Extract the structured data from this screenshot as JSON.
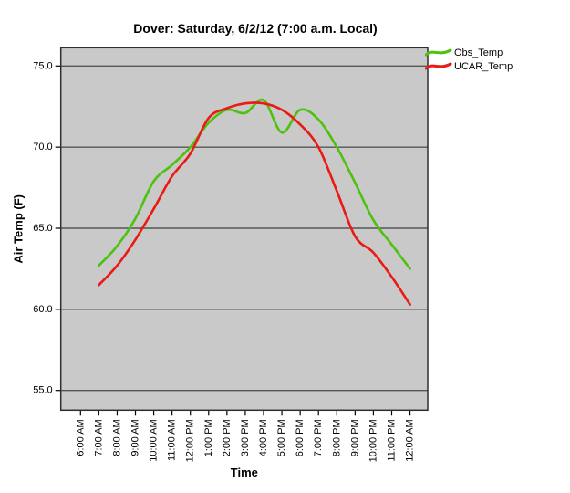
{
  "window": {
    "background": "#ffffff"
  },
  "chart_data": {
    "type": "line",
    "title": "Dover: Saturday, 6/2/12 (7:00 a.m. Local)",
    "xlabel": "Time",
    "ylabel": "Air Temp (F)",
    "ylim": [
      53.8,
      76.1
    ],
    "yticks": [
      55.0,
      60.0,
      65.0,
      70.0,
      75.0
    ],
    "ytick_labels": [
      "55.0",
      "60.0",
      "65.0",
      "70.0",
      "75.0"
    ],
    "grid": "horizontal",
    "plot_bg": "#c9c9c9",
    "gridline_color": "#565656",
    "border_color": "#2e2e2e",
    "legend_position": "top-right",
    "categories": [
      "6:00 AM",
      "7:00 AM",
      "8:00 AM",
      "9:00 AM",
      "10:00 AM",
      "11:00 AM",
      "12:00 PM",
      "1:00 PM",
      "2:00 PM",
      "3:00 PM",
      "4:00 PM",
      "5:00 PM",
      "6:00 PM",
      "7:00 PM",
      "8:00 PM",
      "9:00 PM",
      "10:00 PM",
      "11:00 PM",
      "12:00 AM"
    ],
    "series": [
      {
        "name": "Obs_Temp",
        "color": "#4cc20e",
        "values": [
          null,
          62.7,
          63.9,
          65.6,
          67.9,
          68.9,
          70.0,
          71.5,
          72.3,
          72.1,
          72.9,
          70.9,
          72.3,
          71.7,
          70.0,
          67.8,
          65.5,
          64.0,
          62.5
        ]
      },
      {
        "name": "UCAR_Temp",
        "color": "#ea1a15",
        "values": [
          null,
          61.5,
          62.7,
          64.3,
          66.2,
          68.2,
          69.6,
          71.8,
          72.4,
          72.7,
          72.7,
          72.3,
          71.4,
          70.0,
          67.3,
          64.5,
          63.5,
          62.0,
          60.3
        ]
      }
    ]
  }
}
